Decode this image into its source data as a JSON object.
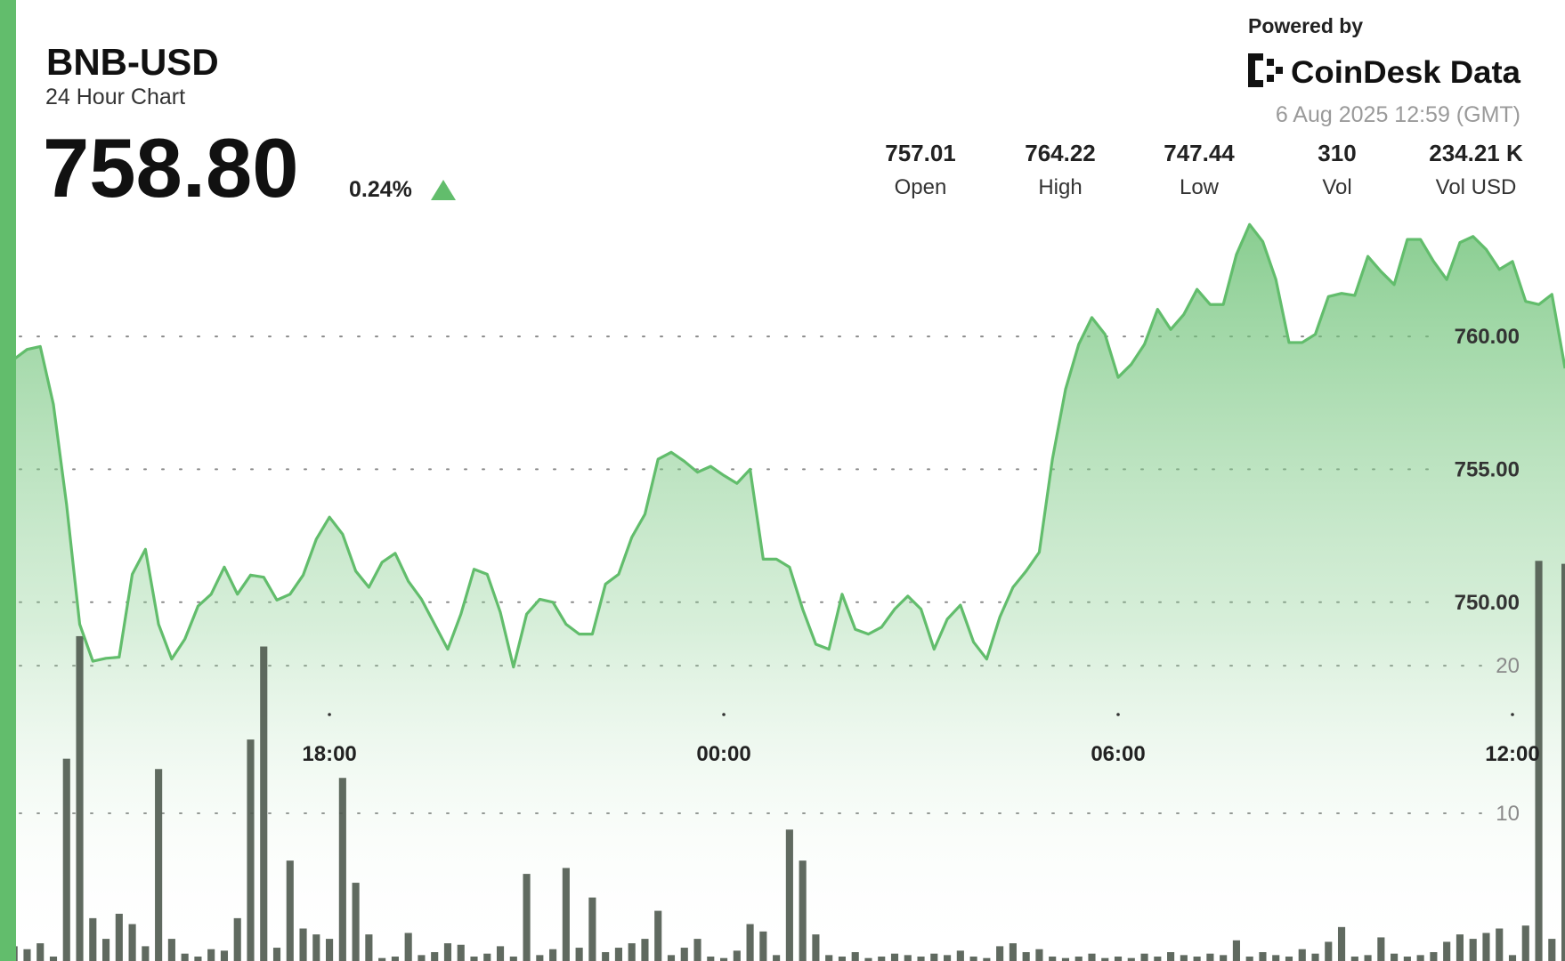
{
  "header": {
    "symbol": "BNB-USD",
    "subtitle": "24 Hour Chart",
    "price": "758.80",
    "change": "0.24%"
  },
  "stats": [
    {
      "value": "757.01",
      "label": "Open"
    },
    {
      "value": "764.22",
      "label": "High"
    },
    {
      "value": "747.44",
      "label": "Low"
    },
    {
      "value": "310",
      "label": "Vol"
    },
    {
      "value": "234.21 K",
      "label": "Vol USD"
    }
  ],
  "powered_by": "Powered by",
  "brand": "CoinDesk Data",
  "timestamp": "6 Aug 2025 12:59 (GMT)",
  "chart_data": {
    "type": "line",
    "categories": [
      null,
      null,
      null,
      null,
      null,
      null,
      null,
      null,
      null,
      null,
      null,
      null,
      null,
      null,
      null,
      null,
      null,
      null,
      null,
      null,
      null,
      null,
      null,
      null,
      "18:00",
      null,
      null,
      null,
      null,
      null,
      null,
      null,
      null,
      null,
      null,
      null,
      null,
      null,
      null,
      null,
      null,
      null,
      null,
      null,
      null,
      null,
      null,
      null,
      null,
      null,
      null,
      null,
      null,
      null,
      "00:00",
      null,
      null,
      null,
      null,
      null,
      null,
      null,
      null,
      null,
      null,
      null,
      null,
      null,
      null,
      null,
      null,
      null,
      null,
      null,
      null,
      null,
      null,
      null,
      null,
      null,
      null,
      null,
      null,
      null,
      "06:00",
      null,
      null,
      null,
      null,
      null,
      null,
      null,
      null,
      null,
      null,
      null,
      null,
      null,
      null,
      null,
      null,
      null,
      null,
      null,
      null,
      null,
      null,
      null,
      null,
      null,
      null,
      null,
      null,
      null,
      "12:00",
      null,
      null,
      null,
      null
    ],
    "series": [
      {
        "type": "line",
        "color": "#62bd6c",
        "values": [
          759.14,
          759.51,
          759.62,
          757.44,
          753.68,
          749.17,
          747.78,
          747.89,
          747.93,
          751.05,
          751.99,
          749.17,
          747.86,
          748.61,
          749.85,
          750.3,
          751.32,
          750.3,
          751.02,
          750.94,
          750.08,
          750.3,
          751.02,
          752.37,
          753.2,
          752.56,
          751.17,
          750.56,
          751.5,
          751.84,
          750.79,
          750.11,
          749.17,
          748.23,
          749.55,
          751.24,
          751.05,
          749.62,
          747.56,
          749.55,
          750.11,
          750.0,
          749.17,
          748.8,
          748.8,
          750.68,
          751.05,
          752.44,
          753.31,
          755.38,
          755.64,
          755.3,
          754.89,
          755.11,
          754.77,
          754.47,
          755.0,
          751.62,
          751.62,
          751.32,
          749.74,
          748.42,
          748.23,
          750.3,
          748.98,
          748.8,
          749.06,
          749.74,
          750.23,
          749.74,
          748.23,
          749.36,
          749.89,
          748.5,
          747.86,
          749.44,
          750.56,
          751.17,
          751.88,
          755.38,
          758.01,
          759.7,
          760.71,
          760.08,
          758.46,
          758.95,
          759.7,
          761.02,
          760.26,
          760.83,
          761.77,
          761.2,
          761.2,
          763.08,
          764.21,
          763.57,
          762.14,
          759.77,
          759.77,
          760.08,
          761.5,
          761.62,
          761.54,
          763.01,
          762.44,
          761.95,
          763.65,
          763.65,
          762.82,
          762.14,
          763.53,
          763.76,
          763.27,
          762.52,
          762.82,
          761.32,
          761.2,
          761.58,
          758.8
        ]
      },
      {
        "type": "bar",
        "axis": "y2",
        "color": "#4f5a4f",
        "values": [
          1.0,
          0.8,
          1.2,
          0.3,
          13.7,
          22,
          2.9,
          1.5,
          3.2,
          2.5,
          1.0,
          13,
          1.5,
          0.5,
          0.3,
          0.8,
          0.7,
          2.9,
          15,
          21.3,
          0.9,
          6.8,
          2.2,
          1.8,
          1.5,
          12.4,
          5.3,
          1.8,
          0.2,
          0.3,
          1.9,
          0.4,
          0.6,
          1.2,
          1.1,
          0.3,
          0.5,
          1.0,
          0.3,
          5.9,
          0.4,
          0.8,
          6.3,
          0.9,
          4.3,
          0.6,
          0.9,
          1.2,
          1.5,
          3.4,
          0.4,
          0.9,
          1.5,
          0.3,
          0.2,
          0.7,
          2.5,
          2.0,
          0.4,
          8.9,
          6.8,
          1.8,
          0.4,
          0.3,
          0.6,
          0.2,
          0.3,
          0.5,
          0.4,
          0.3,
          0.5,
          0.4,
          0.7,
          0.3,
          0.2,
          1.0,
          1.2,
          0.6,
          0.8,
          0.3,
          0.2,
          0.3,
          0.5,
          0.2,
          0.3,
          0.2,
          0.5,
          0.3,
          0.6,
          0.4,
          0.3,
          0.5,
          0.4,
          1.4,
          0.3,
          0.6,
          0.4,
          0.3,
          0.8,
          0.5,
          1.3,
          2.3,
          0.3,
          0.4,
          1.6,
          0.5,
          0.3,
          0.4,
          0.6,
          1.3,
          1.8,
          1.5,
          1.9,
          2.2,
          0.4,
          2.4,
          27.1,
          1.5,
          26.9
        ]
      }
    ],
    "ylim": [
      736.5,
      765
    ],
    "yticks": [
      {
        "value": 750,
        "label": "750.00"
      },
      {
        "value": 755,
        "label": "755.00"
      },
      {
        "value": 760,
        "label": "760.00"
      }
    ],
    "y2lim": [
      0,
      51.3
    ],
    "y2ticks": [
      10,
      20
    ],
    "grid": true,
    "up_color": "#62bd6c"
  }
}
